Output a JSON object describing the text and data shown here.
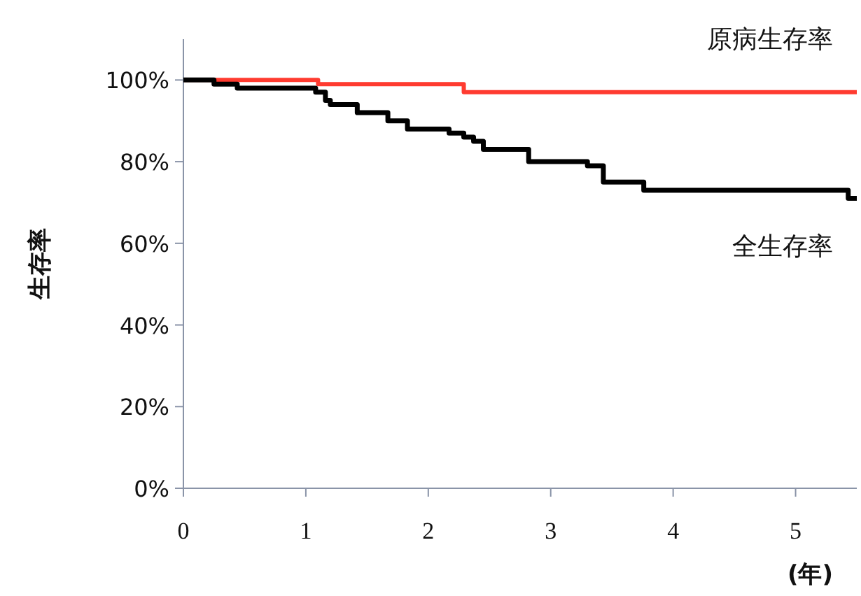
{
  "chart_data": {
    "type": "step",
    "ylabel": "生存率",
    "xlabel": "(年)",
    "xlim": [
      0,
      5.5
    ],
    "ylim": [
      0,
      110
    ],
    "xticks": [
      0,
      1,
      2,
      3,
      4,
      5
    ],
    "yticks": [
      {
        "value": 0,
        "label": "0%"
      },
      {
        "value": 20,
        "label": "20%"
      },
      {
        "value": 40,
        "label": "40%"
      },
      {
        "value": 60,
        "label": "60%"
      },
      {
        "value": 80,
        "label": "80%"
      },
      {
        "value": 100,
        "label": "100%"
      }
    ],
    "grid": false,
    "line_style": "solid",
    "series": [
      {
        "name": "原病生存率",
        "color": "#ff3b30",
        "x": [
          0,
          1.1,
          2.29,
          5.5
        ],
        "values": [
          100,
          99,
          97,
          97
        ]
      },
      {
        "name": "全生存率",
        "color": "#000000",
        "x": [
          0,
          0.25,
          0.44,
          1.08,
          1.16,
          1.2,
          1.42,
          1.67,
          1.83,
          2.17,
          2.29,
          2.37,
          2.45,
          2.82,
          3.3,
          3.43,
          3.76,
          5.43,
          5.5
        ],
        "values": [
          100,
          99,
          98,
          97,
          95,
          94,
          92,
          90,
          88,
          87,
          86,
          85,
          83,
          80,
          79,
          75,
          73,
          71,
          71
        ]
      }
    ]
  }
}
